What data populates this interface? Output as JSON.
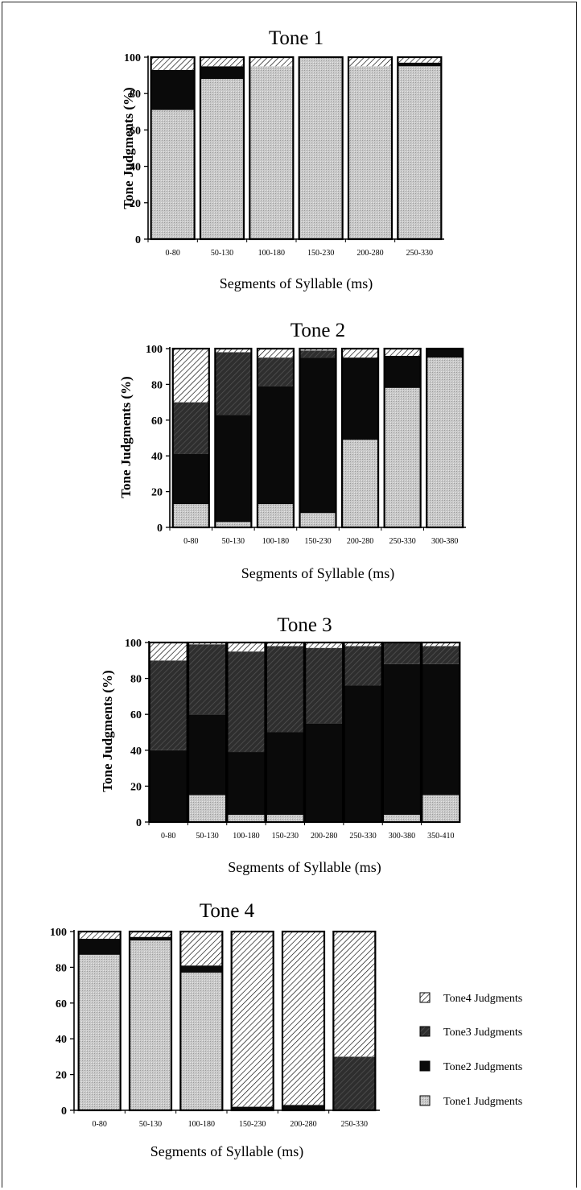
{
  "chart_data": [
    {
      "type": "bar",
      "stacked": true,
      "title": "Tone 1",
      "ylabel": "Tone Judgments (%)",
      "xlabel": "Segments of Syllable (ms)",
      "ylim": [
        0,
        100
      ],
      "yticks": [
        "0",
        "20",
        "40",
        "60",
        "80",
        "100"
      ],
      "categories": [
        "0-80",
        "50-130",
        "100-180",
        "150-230",
        "200-280",
        "250-330"
      ],
      "series": [
        {
          "key": "t1",
          "values": [
            71,
            88,
            95,
            100,
            95,
            95
          ]
        },
        {
          "key": "t2",
          "values": [
            22,
            7,
            0,
            0,
            0,
            2
          ]
        },
        {
          "key": "t3",
          "values": [
            0,
            0,
            0,
            0,
            0,
            0
          ]
        },
        {
          "key": "t4",
          "values": [
            7,
            5,
            5,
            0,
            5,
            3
          ]
        }
      ]
    },
    {
      "type": "bar",
      "stacked": true,
      "title": "Tone 2",
      "ylabel": "Tone Judgments (%)",
      "xlabel": "Segments of Syllable (ms)",
      "ylim": [
        0,
        100
      ],
      "yticks": [
        "0",
        "20",
        "40",
        "60",
        "80",
        "100"
      ],
      "categories": [
        "0-80",
        "50-130",
        "100-180",
        "150-230",
        "200-280",
        "250-330",
        "300-380"
      ],
      "series": [
        {
          "key": "t1",
          "values": [
            13,
            3,
            13,
            8,
            49,
            78,
            95
          ]
        },
        {
          "key": "t2",
          "values": [
            28,
            60,
            66,
            87,
            46,
            18,
            5
          ]
        },
        {
          "key": "t3",
          "values": [
            29,
            35,
            16,
            4,
            0,
            0,
            0
          ]
        },
        {
          "key": "t4",
          "values": [
            30,
            2,
            5,
            1,
            5,
            4,
            0
          ]
        }
      ]
    },
    {
      "type": "bar",
      "stacked": true,
      "title": "Tone 3",
      "ylabel": "Tone Judgments (%)",
      "xlabel": "Segments of Syllable (ms)",
      "ylim": [
        0,
        100
      ],
      "yticks": [
        "0",
        "20",
        "40",
        "60",
        "80",
        "100"
      ],
      "categories": [
        "0-80",
        "50-130",
        "100-180",
        "150-230",
        "200-280",
        "250-330",
        "300-380",
        "350-410"
      ],
      "series": [
        {
          "key": "t1",
          "values": [
            0,
            15,
            4,
            4,
            0,
            0,
            4,
            15
          ]
        },
        {
          "key": "t2",
          "values": [
            40,
            45,
            35,
            46,
            55,
            76,
            84,
            73
          ]
        },
        {
          "key": "t3",
          "values": [
            50,
            39,
            56,
            48,
            42,
            22,
            12,
            10
          ]
        },
        {
          "key": "t4",
          "values": [
            10,
            1,
            5,
            2,
            3,
            2,
            0,
            2
          ]
        }
      ]
    },
    {
      "type": "bar",
      "stacked": true,
      "title": "Tone 4",
      "ylabel": "",
      "xlabel": "Segments of Syllable (ms)",
      "ylim": [
        0,
        100
      ],
      "yticks": [
        "0",
        "20",
        "40",
        "60",
        "80",
        "100"
      ],
      "categories": [
        "0-80",
        "50-130",
        "100-180",
        "150-230",
        "200-280",
        "250-330"
      ],
      "series": [
        {
          "key": "t1",
          "values": [
            87,
            95,
            77,
            0,
            0,
            0
          ]
        },
        {
          "key": "t2",
          "values": [
            9,
            2,
            4,
            2,
            3,
            0
          ]
        },
        {
          "key": "t3",
          "values": [
            0,
            0,
            0,
            0,
            0,
            30
          ]
        },
        {
          "key": "t4",
          "values": [
            4,
            3,
            19,
            98,
            97,
            70
          ]
        }
      ]
    }
  ],
  "legend": {
    "position": "right of Tone 4 chart",
    "items": [
      {
        "key": "t4",
        "label": "Tone4 Judgments"
      },
      {
        "key": "t3",
        "label": "Tone3 Judgments"
      },
      {
        "key": "t2",
        "label": "Tone2 Judgments"
      },
      {
        "key": "t1",
        "label": "Tone1 Judgments"
      }
    ]
  },
  "colors": {
    "t1": "#c9c9c9",
    "t2": "#0a0a0a",
    "t3": "#3a3a3a",
    "t4_stripe": "#000000",
    "t4_bg": "#ffffff"
  }
}
